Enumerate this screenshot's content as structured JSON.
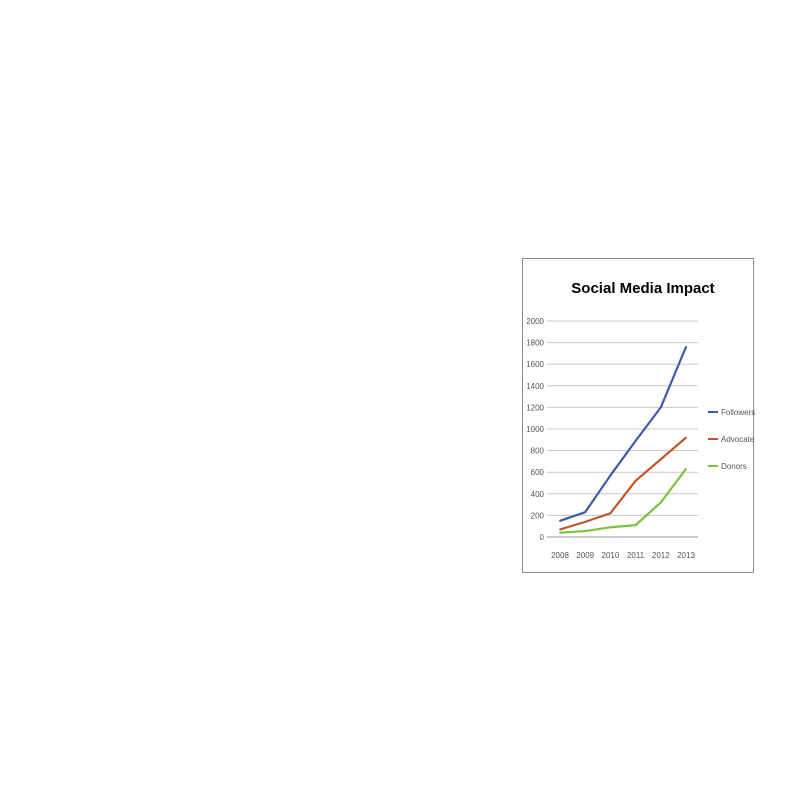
{
  "chart_data": {
    "type": "line",
    "title": "Social Media Impact",
    "xlabel": "",
    "ylabel": "",
    "categories": [
      "2008",
      "2009",
      "2010",
      "2011",
      "2012",
      "2013"
    ],
    "ylim": [
      0,
      2000
    ],
    "yticks": [
      "0",
      "200",
      "400",
      "600",
      "800",
      "1000",
      "1200",
      "1400",
      "1600",
      "1800",
      "2000"
    ],
    "grid": true,
    "legend_position": "right",
    "series": [
      {
        "name": "Followers",
        "color": "#3c5ca5",
        "values": [
          150,
          230,
          570,
          890,
          1200,
          1760
        ]
      },
      {
        "name": "Advocates",
        "color": "#c0562d",
        "values": [
          70,
          140,
          220,
          520,
          720,
          920
        ]
      },
      {
        "name": "Donors",
        "color": "#7cc142",
        "values": [
          40,
          55,
          90,
          110,
          320,
          630
        ]
      }
    ]
  }
}
